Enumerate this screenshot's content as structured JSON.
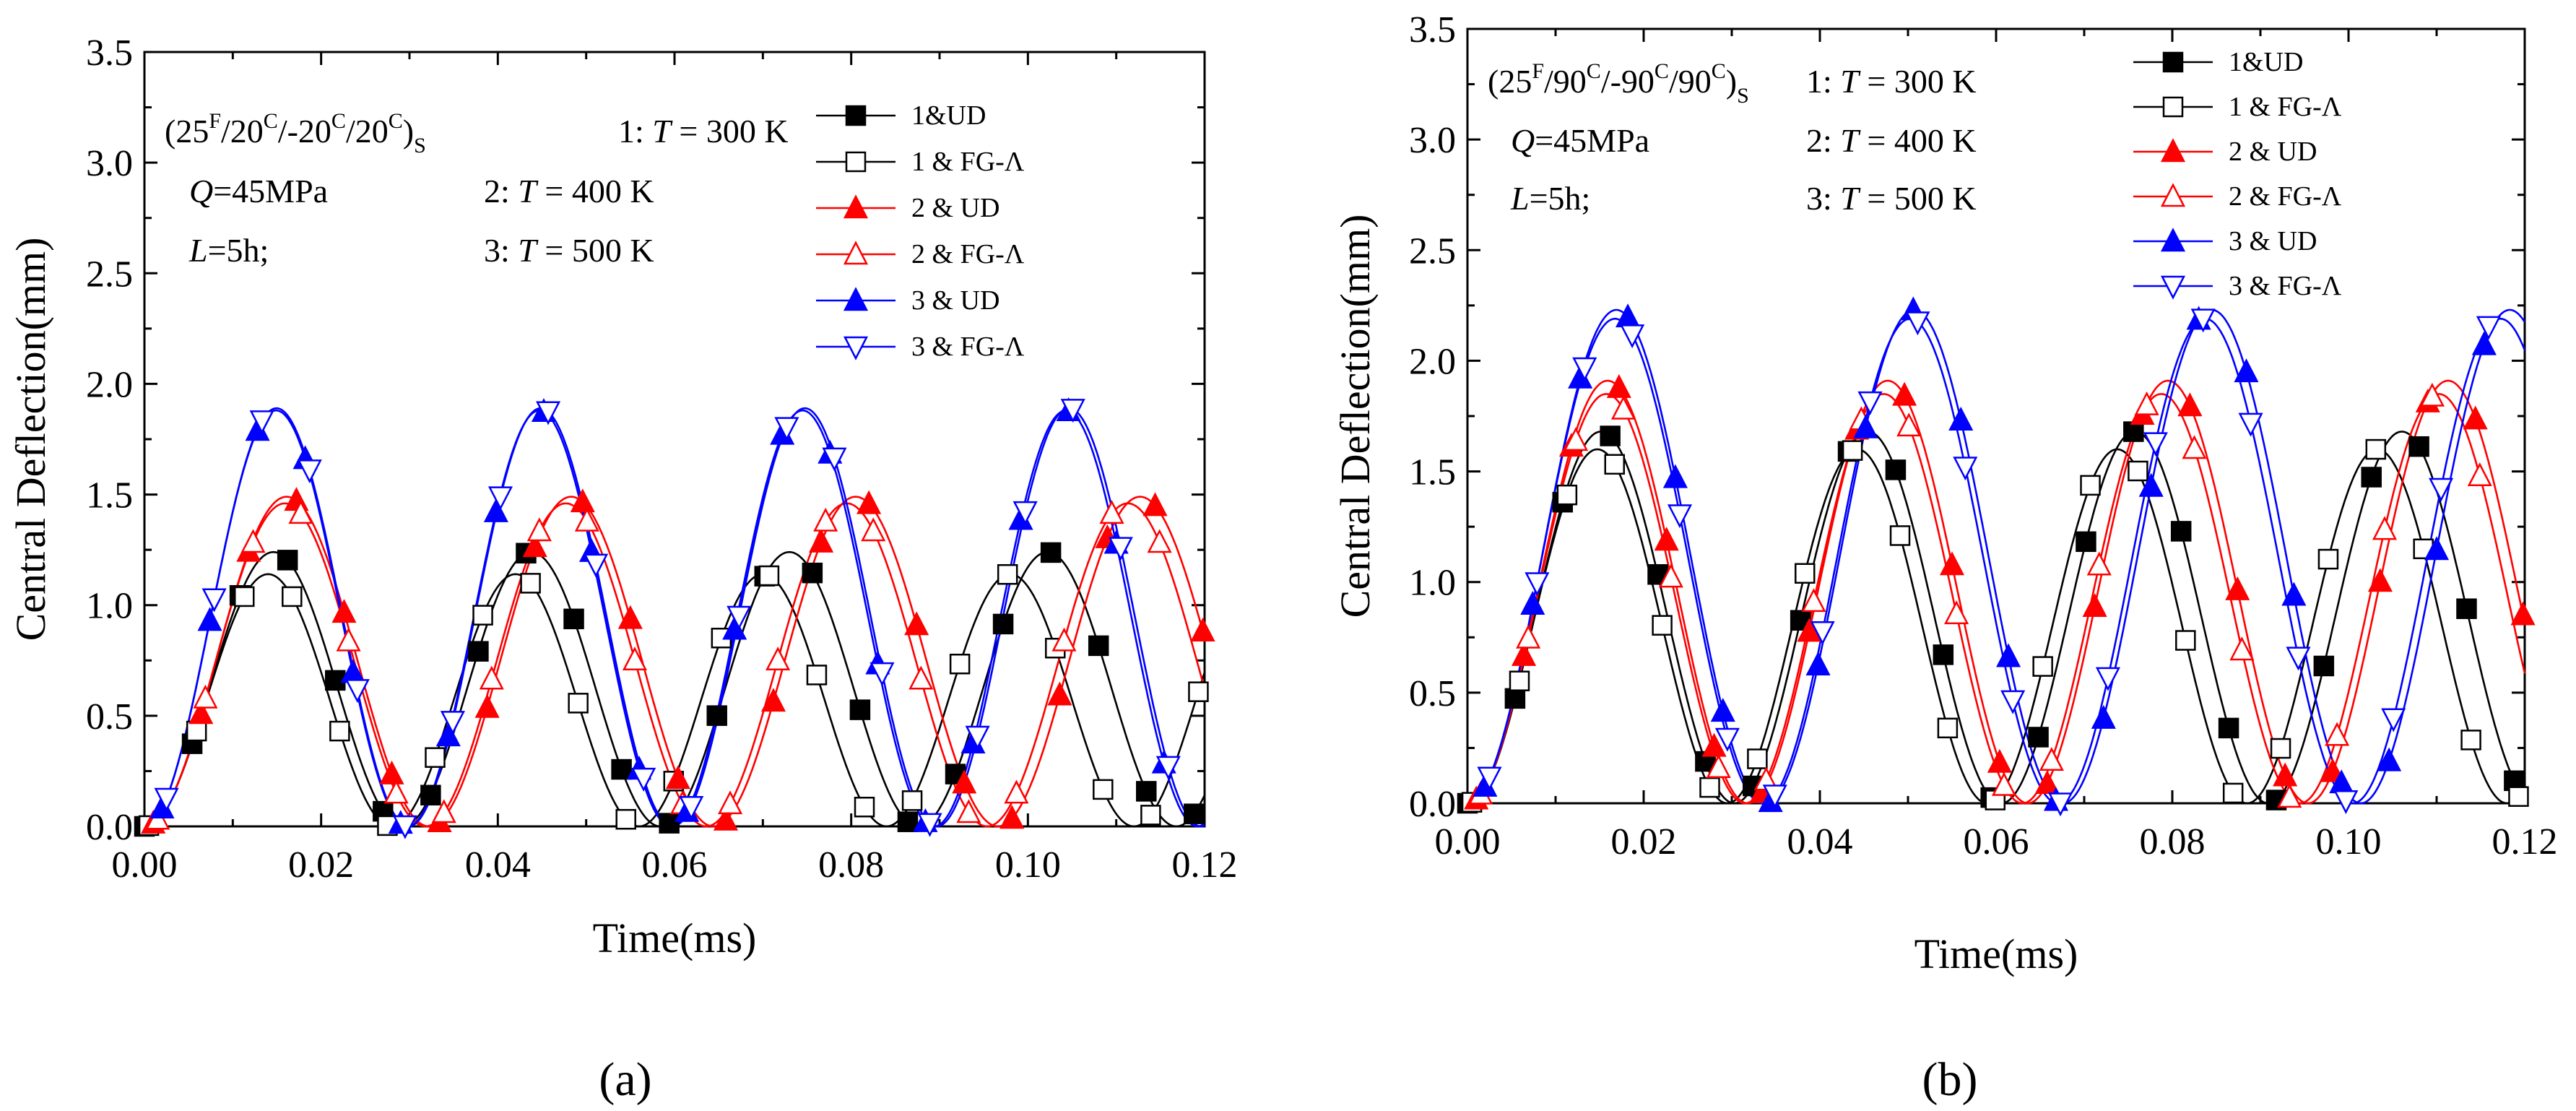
{
  "figure": {
    "panel_labels": [
      "(a)",
      "(b)"
    ]
  },
  "chart_data": [
    {
      "type": "line",
      "panel": "(a)",
      "xlabel": "Time(ms)",
      "ylabel": "Central Deflection(mm)",
      "xlim": [
        0.0,
        0.12
      ],
      "ylim": [
        0.0,
        3.5
      ],
      "xticks": [
        0.0,
        0.02,
        0.04,
        0.06,
        0.08,
        0.1,
        0.12
      ],
      "yticks": [
        0.0,
        0.5,
        1.0,
        1.5,
        2.0,
        2.5,
        3.0,
        3.5
      ],
      "xtick_labels": [
        "0.00",
        "0.02",
        "0.04",
        "0.06",
        "0.08",
        "0.10",
        "0.12"
      ],
      "ytick_labels": [
        "0.0",
        "0.5",
        "1.0",
        "1.5",
        "2.0",
        "2.5",
        "3.0",
        "3.5"
      ],
      "legend_position": "top-right",
      "annotation": {
        "layup": {
          "prefix": "(25",
          "s1": "F",
          "m1": "/20",
          "s2": "C",
          "m2": "/-20",
          "s3": "C",
          "m3": "/20",
          "s4": "C",
          "m4": ")",
          "sub": "S"
        },
        "q_var": "Q",
        "q_rest": "=45MPa",
        "l_var": "L",
        "l_rest": "=5h;",
        "temps": [
          {
            "pre": "1: ",
            "var": "T",
            "post": " = 300 K"
          },
          {
            "pre": "2: ",
            "var": "T",
            "post": " = 400 K"
          },
          {
            "pre": "3: ",
            "var": "T",
            "post": " = 500 K"
          }
        ]
      },
      "series": [
        {
          "name": "1&UD",
          "color": "#000000",
          "marker": "square",
          "filled": true,
          "amplitude": 1.24,
          "period": 0.0292
        },
        {
          "name": "1 & FG-Λ",
          "color": "#000000",
          "marker": "square",
          "filled": false,
          "amplitude": 1.14,
          "period": 0.028
        },
        {
          "name": "2 & UD",
          "color": "#ff0000",
          "marker": "triangle-up",
          "filled": true,
          "amplitude": 1.49,
          "period": 0.0322
        },
        {
          "name": "2 & FG-Λ",
          "color": "#ff0000",
          "marker": "triangle-up",
          "filled": false,
          "amplitude": 1.46,
          "period": 0.0318
        },
        {
          "name": "3 & UD",
          "color": "#0000ff",
          "marker": "triangle-up",
          "filled": true,
          "amplitude": 1.88,
          "period": 0.0298
        },
        {
          "name": "3 & FG-Λ",
          "color": "#0000ff",
          "marker": "triangle-down",
          "filled": false,
          "amplitude": 1.89,
          "period": 0.0299
        }
      ]
    },
    {
      "type": "line",
      "panel": "(b)",
      "xlabel": "Time(ms)",
      "ylabel": "Central Deflection(mm)",
      "xlim": [
        0.0,
        0.12
      ],
      "ylim": [
        0.0,
        3.5
      ],
      "xticks": [
        0.0,
        0.02,
        0.04,
        0.06,
        0.08,
        0.1,
        0.12
      ],
      "yticks": [
        0.0,
        0.5,
        1.0,
        1.5,
        2.0,
        2.5,
        3.0,
        3.5
      ],
      "xtick_labels": [
        "0.00",
        "0.02",
        "0.04",
        "0.06",
        "0.08",
        "0.10",
        "0.12"
      ],
      "ytick_labels": [
        "0.0",
        "0.5",
        "1.0",
        "1.5",
        "2.0",
        "2.5",
        "3.0",
        "3.5"
      ],
      "legend_position": "top-right",
      "annotation": {
        "layup": {
          "prefix": "(25",
          "s1": "F",
          "m1": "/90",
          "s2": "C",
          "m2": "/-90",
          "s3": "C",
          "m3": "/90",
          "s4": "C",
          "m4": ")",
          "sub": "S"
        },
        "q_var": "Q",
        "q_rest": "=45MPa",
        "l_var": "L",
        "l_rest": "=5h;",
        "temps": [
          {
            "pre": "1: ",
            "var": "T",
            "post": " = 300 K"
          },
          {
            "pre": "2: ",
            "var": "T",
            "post": " = 400 K"
          },
          {
            "pre": "3: ",
            "var": "T",
            "post": " = 500 K"
          }
        ]
      },
      "series": [
        {
          "name": "1&UD",
          "color": "#000000",
          "marker": "square",
          "filled": true,
          "amplitude": 1.68,
          "period": 0.0303
        },
        {
          "name": "1 & FG-Λ",
          "color": "#000000",
          "marker": "square",
          "filled": false,
          "amplitude": 1.6,
          "period": 0.0295
        },
        {
          "name": "2 & UD",
          "color": "#ff0000",
          "marker": "triangle-up",
          "filled": true,
          "amplitude": 1.91,
          "period": 0.0318
        },
        {
          "name": "2 & FG-Λ",
          "color": "#ff0000",
          "marker": "triangle-up",
          "filled": false,
          "amplitude": 1.85,
          "period": 0.0315
        },
        {
          "name": "3 & UD",
          "color": "#0000ff",
          "marker": "triangle-up",
          "filled": true,
          "amplitude": 2.23,
          "period": 0.0338
        },
        {
          "name": "3 & FG-Λ",
          "color": "#0000ff",
          "marker": "triangle-down",
          "filled": false,
          "amplitude": 2.19,
          "period": 0.0335
        }
      ]
    }
  ]
}
